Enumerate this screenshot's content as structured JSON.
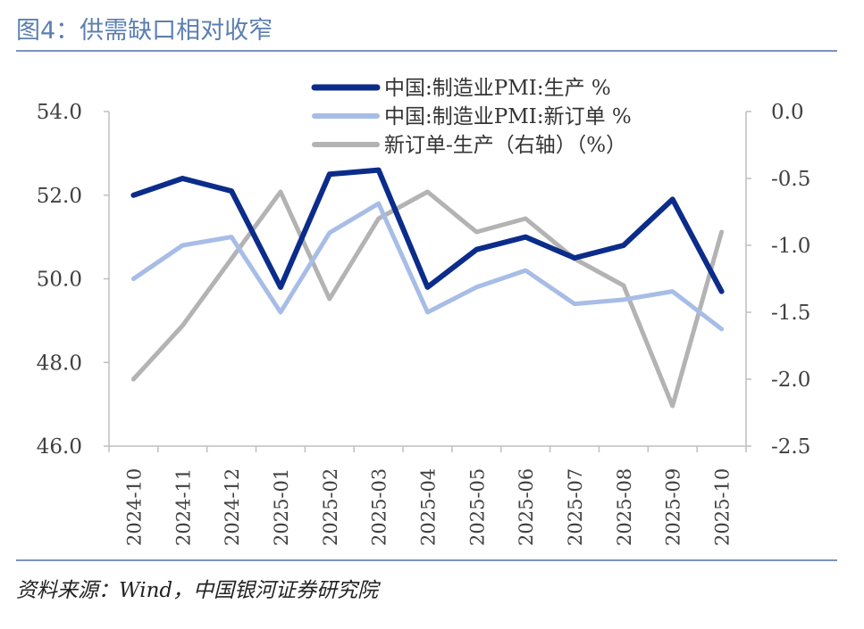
{
  "figure_title": "图4：供需缺口相对收窄",
  "source": "资料来源：Wind，中国银河证券研究院",
  "colors": {
    "production": "#0b2c8a",
    "new_orders": "#a7bde6",
    "gap": "#b3b3b3",
    "axis": "#bfbfbf",
    "text": "#404040",
    "accent": "#7b93bd"
  },
  "chart_data": {
    "type": "line",
    "categories": [
      "2024-10",
      "2024-11",
      "2024-12",
      "2025-01",
      "2025-02",
      "2025-03",
      "2025-04",
      "2025-05",
      "2025-06",
      "2025-07",
      "2025-08",
      "2025-09",
      "2025-10"
    ],
    "y_left": {
      "range": [
        46.0,
        54.0
      ],
      "ticks": [
        "54.0",
        "52.0",
        "50.0",
        "48.0",
        "46.0"
      ]
    },
    "y_right": {
      "range": [
        -2.5,
        0.0
      ],
      "ticks": [
        "0.0",
        "-0.5",
        "-1.0",
        "-1.5",
        "-2.0",
        "-2.5"
      ]
    },
    "series": [
      {
        "name": "中国:制造业PMI:生产 %",
        "axis": "left",
        "color_key": "production",
        "values": [
          52.0,
          52.4,
          52.1,
          49.8,
          52.5,
          52.6,
          49.8,
          50.7,
          51.0,
          50.5,
          50.8,
          51.9,
          49.7
        ]
      },
      {
        "name": "中国:制造业PMI:新订单 %",
        "axis": "left",
        "color_key": "new_orders",
        "values": [
          50.0,
          50.8,
          51.0,
          49.2,
          51.1,
          51.8,
          49.2,
          49.8,
          50.2,
          49.4,
          49.5,
          49.7,
          48.8
        ]
      },
      {
        "name": "新订单-生产（右轴）（%）",
        "axis": "right",
        "color_key": "gap",
        "values": [
          -2.0,
          -1.6,
          -1.1,
          -0.6,
          -1.4,
          -0.8,
          -0.6,
          -0.9,
          -0.8,
          -1.1,
          -1.3,
          -2.2,
          -0.9
        ]
      }
    ]
  }
}
